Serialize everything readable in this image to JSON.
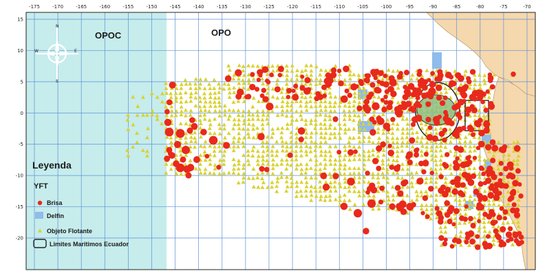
{
  "map": {
    "x_ticks": [
      "-175",
      "-170",
      "-165",
      "-160",
      "-155",
      "-150",
      "-145",
      "-140",
      "-135",
      "-130",
      "-125",
      "-120",
      "-115",
      "-110",
      "-105",
      "-100",
      "-95",
      "-90",
      "-85",
      "-80",
      "-75",
      "-70"
    ],
    "y_ticks": [
      "15",
      "10",
      "5",
      "0",
      "-5",
      "-10",
      "-15",
      "-20"
    ],
    "regions": {
      "left": "OPOC",
      "right": "OPO"
    },
    "compass": {
      "n": "N",
      "w": "W",
      "e": "E",
      "s": "S"
    },
    "colors": {
      "ocean_opoc": "#c6ecec",
      "ocean_opo": "#ffffff",
      "land": "#f5d8ad",
      "grid": "#5b8fd6",
      "brisa": "#e8291c",
      "delfin": "#8fbcea",
      "objeto_flotante": "#d9d234",
      "ecuador_zone": "#8fbf80",
      "ecuador_border": "#222222"
    }
  },
  "legend": {
    "title": "Leyenda",
    "species": "YFT",
    "items": [
      {
        "label": "Brisa",
        "icon": "red-dot-icon"
      },
      {
        "label": "Delfin",
        "icon": "blue-square-icon"
      },
      {
        "label": "Objeto Flotante",
        "icon": "yellow-triangle-icon"
      },
      {
        "label": "Limites Maritimos Ecuador",
        "icon": "outline-rect-icon"
      }
    ]
  }
}
